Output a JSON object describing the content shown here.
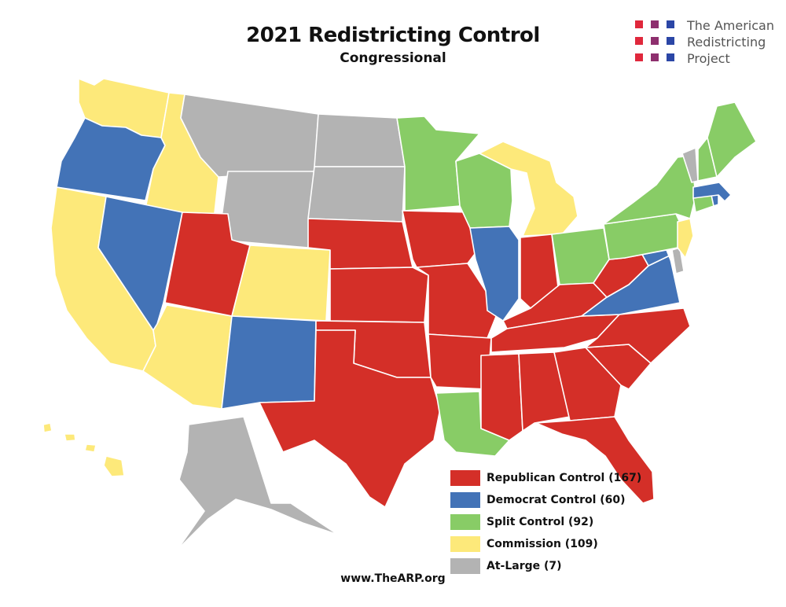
{
  "header": {
    "title": "2021 Redistricting Control",
    "subtitle": "Congressional"
  },
  "logo": {
    "lines": [
      "The American",
      "Redistricting",
      "Project"
    ],
    "colors": [
      "#e0283c",
      "#8e2f6e",
      "#2b46a6"
    ]
  },
  "colors": {
    "republican": "#d42f28",
    "democrat": "#4373b7",
    "split": "#88cc66",
    "commission": "#fde97a",
    "atlarge": "#b3b3b3"
  },
  "legend": [
    {
      "key": "republican",
      "label": "Republican Control (167)"
    },
    {
      "key": "democrat",
      "label": "Democrat Control (60)"
    },
    {
      "key": "split",
      "label": "Split Control (92)"
    },
    {
      "key": "commission",
      "label": "Commission (109)"
    },
    {
      "key": "atlarge",
      "label": "At-Large (7)"
    }
  ],
  "states": [
    {
      "id": "WA",
      "control": "commission"
    },
    {
      "id": "OR",
      "control": "democrat"
    },
    {
      "id": "CA",
      "control": "commission"
    },
    {
      "id": "ID",
      "control": "commission"
    },
    {
      "id": "NV",
      "control": "democrat"
    },
    {
      "id": "AZ",
      "control": "commission"
    },
    {
      "id": "MT",
      "control": "atlarge"
    },
    {
      "id": "WY",
      "control": "atlarge"
    },
    {
      "id": "UT",
      "control": "republican"
    },
    {
      "id": "CO",
      "control": "commission"
    },
    {
      "id": "NM",
      "control": "democrat"
    },
    {
      "id": "ND",
      "control": "atlarge"
    },
    {
      "id": "SD",
      "control": "atlarge"
    },
    {
      "id": "NE",
      "control": "republican"
    },
    {
      "id": "KS",
      "control": "republican"
    },
    {
      "id": "OK",
      "control": "republican"
    },
    {
      "id": "TX",
      "control": "republican"
    },
    {
      "id": "MN",
      "control": "split"
    },
    {
      "id": "IA",
      "control": "republican"
    },
    {
      "id": "MO",
      "control": "republican"
    },
    {
      "id": "AR",
      "control": "republican"
    },
    {
      "id": "LA",
      "control": "split"
    },
    {
      "id": "WI",
      "control": "split"
    },
    {
      "id": "IL",
      "control": "democrat"
    },
    {
      "id": "MI",
      "control": "commission"
    },
    {
      "id": "IN",
      "control": "republican"
    },
    {
      "id": "OH",
      "control": "split"
    },
    {
      "id": "KY",
      "control": "republican"
    },
    {
      "id": "TN",
      "control": "republican"
    },
    {
      "id": "MS",
      "control": "republican"
    },
    {
      "id": "AL",
      "control": "republican"
    },
    {
      "id": "GA",
      "control": "republican"
    },
    {
      "id": "FL",
      "control": "republican"
    },
    {
      "id": "SC",
      "control": "republican"
    },
    {
      "id": "NC",
      "control": "republican"
    },
    {
      "id": "VA",
      "control": "democrat"
    },
    {
      "id": "WV",
      "control": "republican"
    },
    {
      "id": "MD",
      "control": "democrat"
    },
    {
      "id": "DE",
      "control": "atlarge"
    },
    {
      "id": "PA",
      "control": "split"
    },
    {
      "id": "NJ",
      "control": "commission"
    },
    {
      "id": "NY",
      "control": "split"
    },
    {
      "id": "CT",
      "control": "split"
    },
    {
      "id": "RI",
      "control": "democrat"
    },
    {
      "id": "MA",
      "control": "democrat"
    },
    {
      "id": "VT",
      "control": "atlarge"
    },
    {
      "id": "NH",
      "control": "split"
    },
    {
      "id": "ME",
      "control": "split"
    },
    {
      "id": "AK",
      "control": "atlarge"
    },
    {
      "id": "HI",
      "control": "commission"
    }
  ],
  "footer": "www.TheARP.org"
}
